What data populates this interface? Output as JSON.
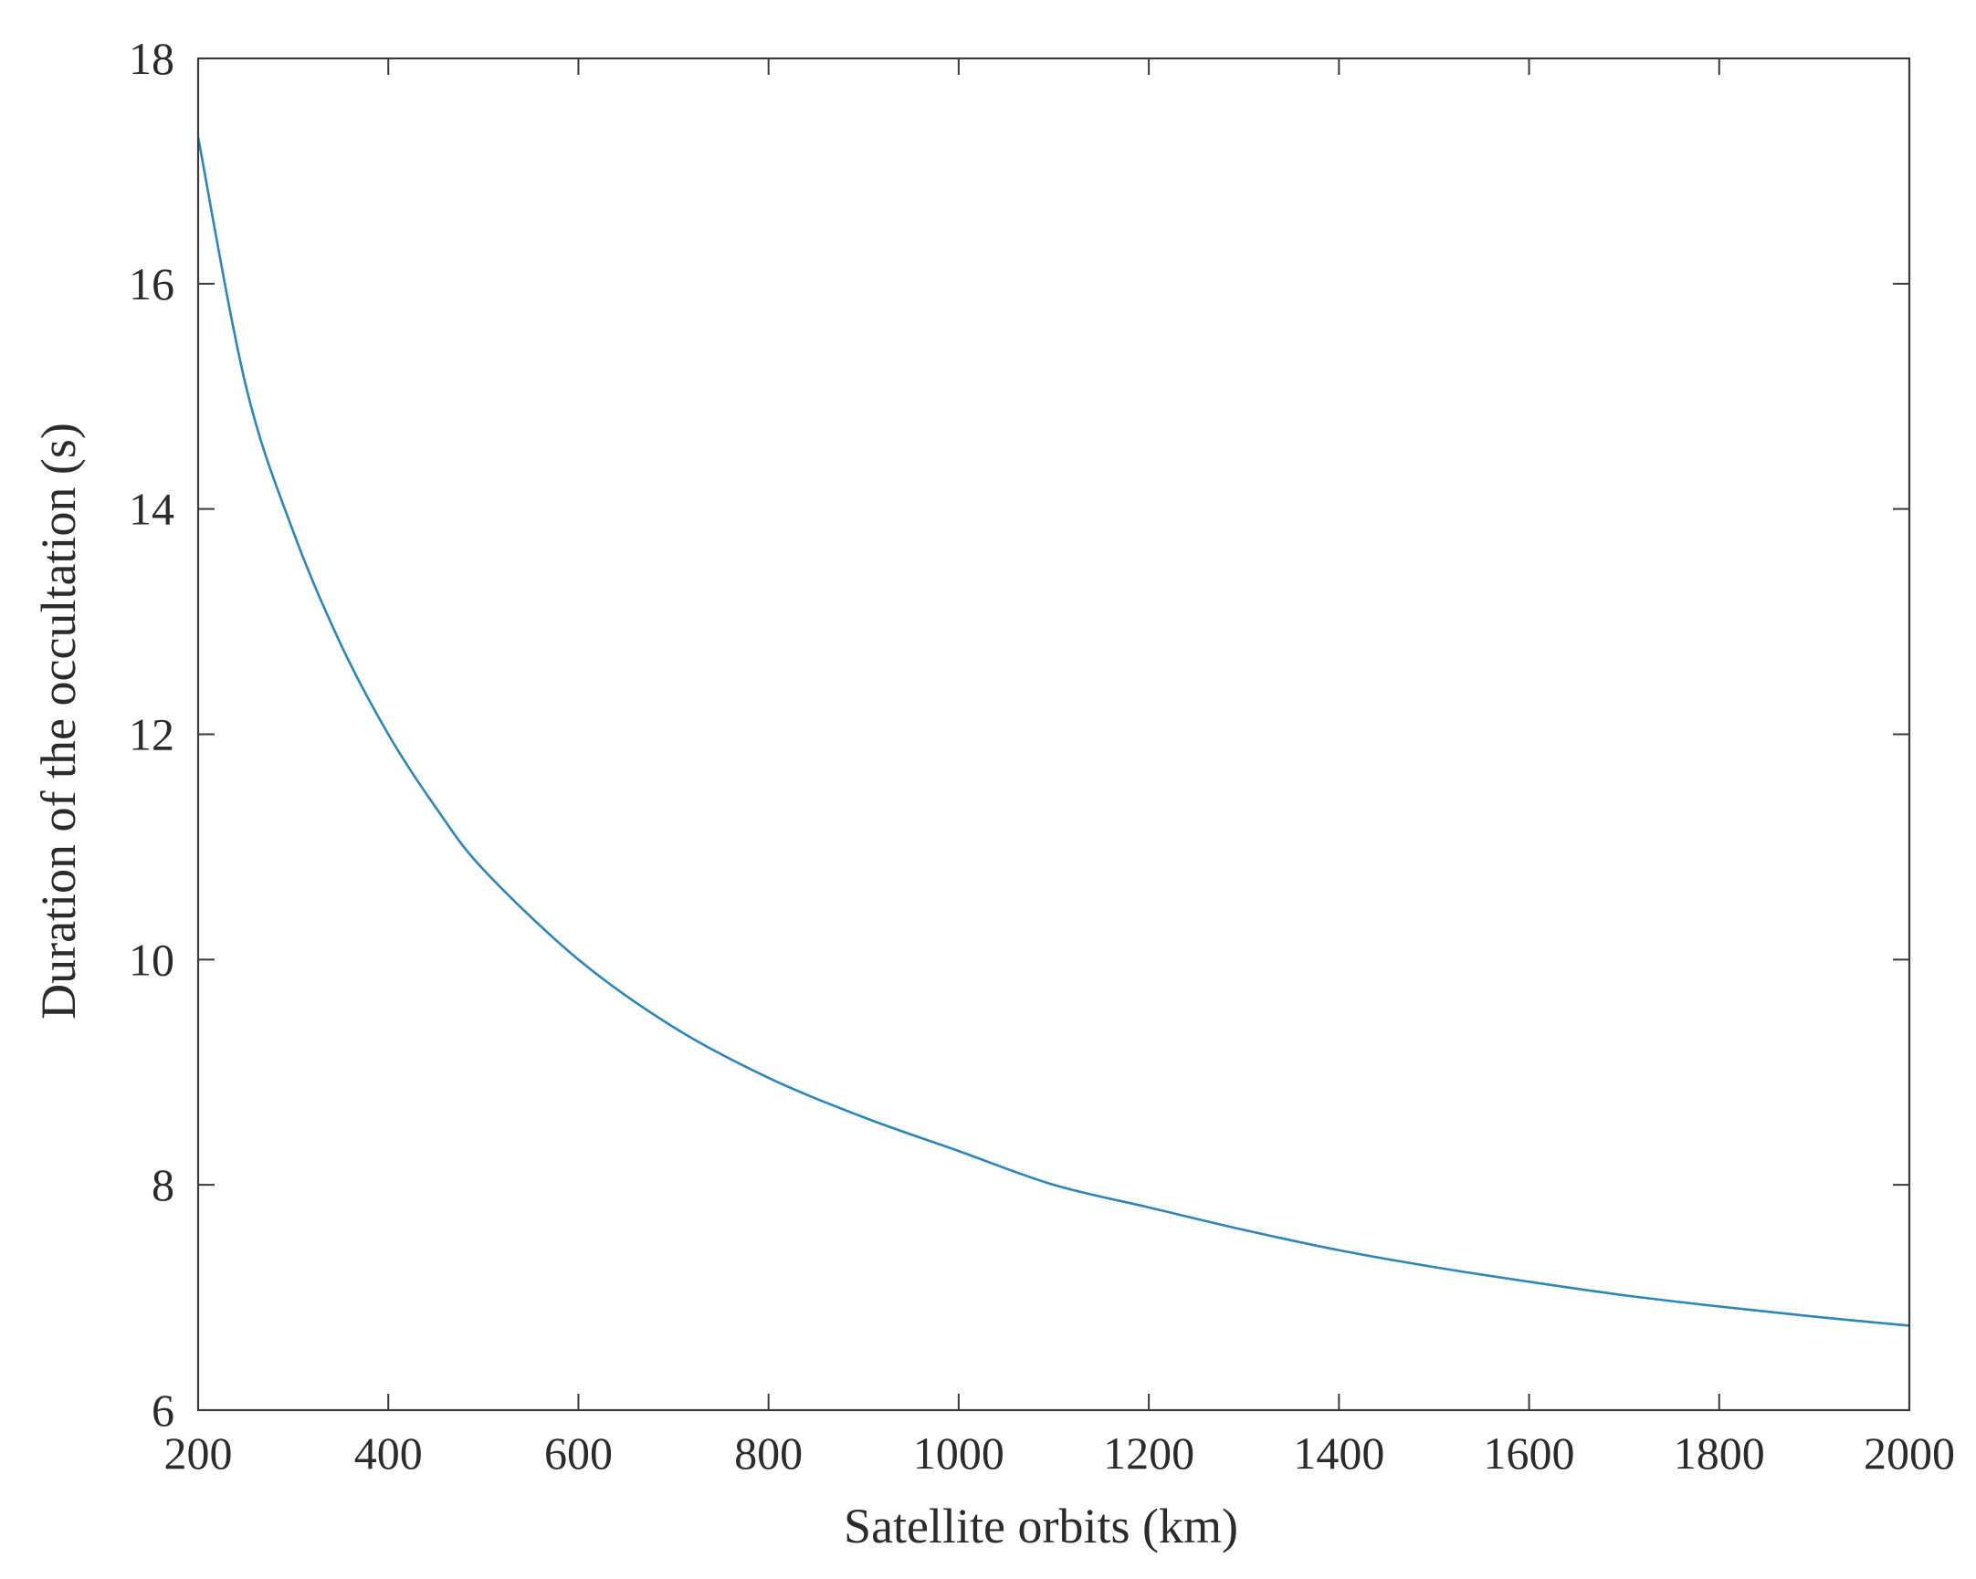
{
  "chart_data": {
    "type": "line",
    "title": "",
    "xlabel": "Satellite orbits (km)",
    "ylabel": "Duration of the occultation (s)",
    "xlim": [
      200,
      2000
    ],
    "ylim": [
      6,
      18
    ],
    "xticks": [
      200,
      400,
      600,
      800,
      1000,
      1200,
      1400,
      1600,
      1800,
      2000
    ],
    "yticks": [
      6,
      8,
      10,
      12,
      14,
      16,
      18
    ],
    "grid": false,
    "box": true,
    "series": [
      {
        "color": "#2a86bd",
        "x": [
          200,
          250,
          300,
          350,
          400,
          450,
          500,
          600,
          700,
          800,
          900,
          1000,
          1100,
          1200,
          1300,
          1400,
          1500,
          1600,
          1700,
          1800,
          1900,
          2000
        ],
        "y": [
          17.3,
          15.1,
          13.8,
          12.8,
          12.0,
          11.35,
          10.8,
          10.0,
          9.4,
          8.95,
          8.6,
          8.3,
          8.0,
          7.8,
          7.6,
          7.42,
          7.27,
          7.14,
          7.02,
          6.92,
          6.83,
          6.75
        ]
      }
    ]
  }
}
